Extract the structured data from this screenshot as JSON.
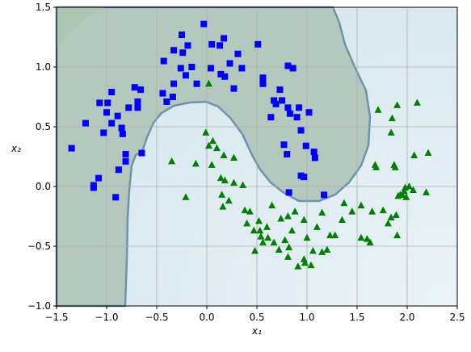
{
  "chart_data": {
    "type": "scatter",
    "xlabel": "x₁",
    "ylabel": "x₂",
    "xlim": [
      -1.5,
      2.5
    ],
    "ylim": [
      -1.0,
      1.5
    ],
    "xticks": [
      {
        "value": -1.5,
        "label": "−1.5"
      },
      {
        "value": -1.0,
        "label": "−1.0"
      },
      {
        "value": -0.5,
        "label": "−0.5"
      },
      {
        "value": 0,
        "label": "0.0"
      },
      {
        "value": 0.5,
        "label": "0.5"
      },
      {
        "value": 1.0,
        "label": "1.0"
      },
      {
        "value": 1.5,
        "label": "1.5"
      },
      {
        "value": 2.0,
        "label": "2.0"
      },
      {
        "value": 2.5,
        "label": "2.5"
      }
    ],
    "yticks": [
      {
        "value": -1.0,
        "label": "−1.0"
      },
      {
        "value": -0.5,
        "label": "−0.5"
      },
      {
        "value": 0,
        "label": "0.0"
      },
      {
        "value": 0.5,
        "label": "0.5"
      },
      {
        "value": 1.0,
        "label": "1.0"
      },
      {
        "value": 1.5,
        "label": "1.5"
      }
    ],
    "grid": true,
    "series": [
      {
        "color": "#0000ff",
        "marker": "square",
        "x": [
          -1.35,
          -1.21,
          -1.13,
          -1.13,
          -1.08,
          -1.07,
          -1.03,
          -1.0,
          -0.99,
          -0.95,
          -0.95,
          -0.91,
          -0.89,
          -0.88,
          -0.85,
          -0.84,
          -0.81,
          -0.81,
          -0.78,
          -0.72,
          -0.69,
          -0.69,
          -0.66,
          -0.65,
          -0.44,
          -0.43,
          -0.4,
          -0.34,
          -0.33,
          -0.33,
          -0.25,
          -0.24,
          -0.26,
          -0.19,
          -0.21,
          -0.15,
          -0.1,
          -0.03,
          0.05,
          0.04,
          0.13,
          0.14,
          0.17,
          0.18,
          0.23,
          0.27,
          0.31,
          0.35,
          0.51,
          0.56,
          0.56,
          0.64,
          0.67,
          0.69,
          0.73,
          0.75,
          0.77,
          0.8,
          0.81,
          0.81,
          0.83,
          0.86,
          0.82,
          0.9,
          0.92,
          0.94,
          0.94,
          0.97,
          0.99,
          1.02,
          1.07,
          1.08,
          1.17
        ],
        "values": [
          0.32,
          0.53,
          -0.01,
          0.01,
          0.07,
          0.7,
          0.45,
          0.62,
          0.7,
          0.79,
          0.53,
          -0.09,
          0.59,
          0.14,
          0.49,
          0.44,
          0.27,
          0.21,
          0.66,
          0.83,
          0.71,
          0.66,
          0.81,
          0.28,
          0.78,
          1.05,
          0.71,
          0.75,
          0.86,
          1.14,
          1.27,
          1.12,
          0.99,
          1.18,
          0.93,
          1.0,
          0.86,
          1.36,
          1.19,
          0.99,
          1.18,
          0.94,
          1.24,
          0.92,
          1.03,
          0.82,
          1.11,
          0.99,
          1.19,
          0.91,
          0.86,
          0.58,
          0.72,
          0.69,
          0.81,
          0.72,
          0.35,
          0.27,
          0.66,
          1.01,
          0.61,
          0.99,
          -0.05,
          0.58,
          0.66,
          0.47,
          0.09,
          0.08,
          0.34,
          0.62,
          0.29,
          0.24,
          -0.07
        ]
      },
      {
        "color": "#008000",
        "marker": "triangle",
        "x": [
          -0.35,
          -0.21,
          -0.11,
          0.02,
          -0.01,
          0.02,
          0.05,
          0.06,
          0.1,
          0.14,
          0.15,
          0.16,
          0.22,
          0.17,
          0.18,
          0.27,
          0.27,
          0.36,
          0.38,
          0.4,
          0.43,
          0.47,
          0.48,
          0.52,
          0.53,
          0.54,
          0.56,
          0.6,
          0.61,
          0.65,
          0.67,
          0.72,
          0.74,
          0.78,
          0.81,
          0.81,
          0.82,
          0.85,
          0.88,
          0.91,
          0.97,
          0.97,
          0.98,
          1.0,
          1.04,
          1.06,
          1.1,
          1.15,
          1.15,
          1.2,
          1.23,
          1.28,
          1.35,
          1.37,
          1.45,
          1.54,
          1.54,
          1.6,
          1.63,
          1.65,
          1.68,
          1.69,
          1.71,
          1.76,
          1.81,
          1.84,
          1.84,
          1.85,
          1.87,
          1.88,
          1.89,
          1.9,
          1.9,
          1.91,
          1.93,
          1.95,
          1.97,
          1.98,
          1.99,
          2.02,
          2.06,
          2.07,
          2.1,
          2.19,
          2.21
        ],
        "values": [
          0.21,
          -0.09,
          0.19,
          0.86,
          0.45,
          0.34,
          0.18,
          0.38,
          0.32,
          0.07,
          -0.07,
          -0.17,
          -0.12,
          0.26,
          0.05,
          0.24,
          0.03,
          0.01,
          -0.2,
          -0.31,
          -0.21,
          -0.37,
          -0.54,
          -0.29,
          -0.37,
          -0.42,
          -0.47,
          -0.34,
          -0.43,
          -0.16,
          -0.47,
          -0.53,
          -0.27,
          -0.45,
          -0.25,
          -0.59,
          -0.51,
          -0.37,
          -0.21,
          -0.67,
          -0.28,
          -0.61,
          -0.64,
          -0.43,
          -0.66,
          -0.54,
          -0.34,
          -0.55,
          -0.22,
          -0.53,
          -0.41,
          -0.41,
          -0.28,
          -0.14,
          -0.21,
          -0.16,
          -0.43,
          -0.44,
          -0.47,
          -0.21,
          0.18,
          0.16,
          0.64,
          -0.2,
          -0.31,
          -0.26,
          0.45,
          0.57,
          0.18,
          0.16,
          -0.24,
          0.68,
          -0.41,
          -0.08,
          -0.07,
          -0.07,
          -0.04,
          -0.01,
          -0.09,
          0.0,
          -0.03,
          0.26,
          0.7,
          -0.05,
          0.28
        ]
      }
    ]
  }
}
